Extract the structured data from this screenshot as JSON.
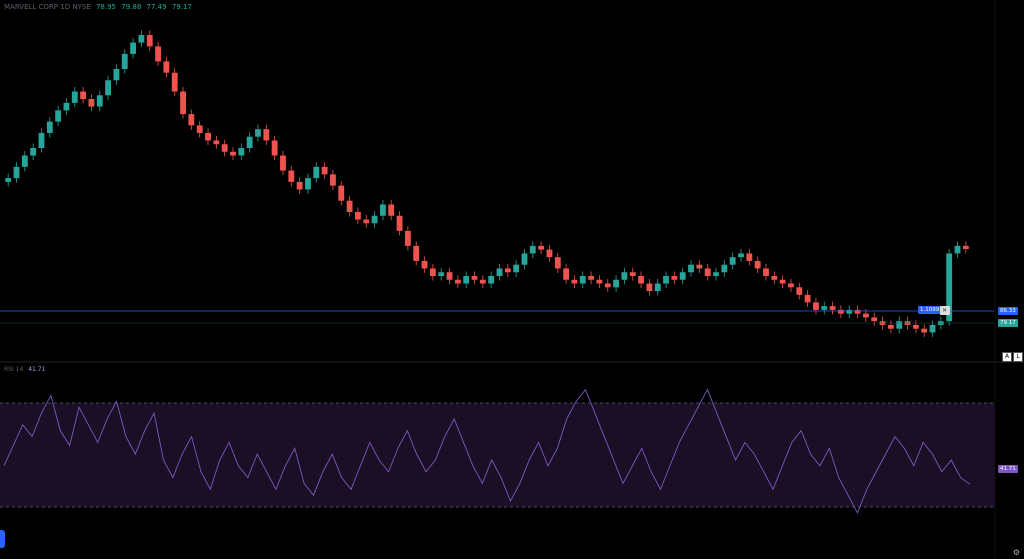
{
  "legend": {
    "symbol": "MARVELL CORP",
    "interval": "1D",
    "exchange": "NYSE",
    "open": "78.95",
    "high": "79.88",
    "low": "77.49",
    "close": "79.17"
  },
  "price_tags": {
    "hline": "86.33",
    "last": "79.17",
    "ratio": "1.1099"
  },
  "rsi": {
    "label": "RSI 14",
    "value": "41.71"
  },
  "buttons": {
    "auto": "A",
    "log": "L"
  },
  "colors": {
    "up": "#26a69a",
    "down": "#ef5350",
    "rsi": "#7e57c2",
    "hline": "#2962ff"
  },
  "chart_data": [
    {
      "type": "candlestick",
      "close_series": [
        98,
        101,
        104,
        106,
        110,
        113,
        116,
        118,
        121,
        119,
        117,
        120,
        124,
        127,
        131,
        134,
        136,
        133,
        129,
        126,
        121,
        115,
        112,
        110,
        108,
        107,
        105,
        104,
        106,
        109,
        111,
        108,
        104,
        100,
        97,
        95,
        98,
        101,
        99,
        96,
        92,
        89,
        87,
        86,
        88,
        91,
        88,
        84,
        80,
        76,
        74,
        72,
        73,
        71,
        70,
        72,
        71,
        70,
        72,
        74,
        73,
        75,
        78,
        80,
        79,
        77,
        74,
        71,
        70,
        72,
        71,
        70,
        69,
        71,
        73,
        72,
        70,
        68,
        70,
        72,
        71,
        73,
        75,
        74,
        72,
        73,
        75,
        77,
        78,
        76,
        74,
        72,
        71,
        70,
        69,
        67,
        65,
        63,
        64,
        63,
        62,
        63,
        62,
        61,
        60,
        59,
        58,
        60,
        59,
        58,
        57,
        59,
        60,
        78,
        80,
        79.17
      ],
      "ylabel": "",
      "grid": false
    },
    {
      "type": "line",
      "title": "RSI 14",
      "values": [
        48,
        55,
        62,
        58,
        66,
        72,
        60,
        55,
        68,
        62,
        56,
        64,
        70,
        58,
        52,
        60,
        66,
        50,
        44,
        52,
        58,
        46,
        40,
        50,
        56,
        48,
        44,
        52,
        46,
        40,
        48,
        54,
        42,
        38,
        46,
        52,
        44,
        40,
        48,
        56,
        50,
        46,
        54,
        60,
        52,
        46,
        50,
        58,
        64,
        56,
        48,
        42,
        50,
        44,
        36,
        42,
        50,
        56,
        48,
        54,
        64,
        70,
        74,
        66,
        58,
        50,
        42,
        48,
        54,
        46,
        40,
        48,
        56,
        62,
        68,
        74,
        66,
        58,
        50,
        56,
        52,
        46,
        40,
        48,
        56,
        60,
        52,
        48,
        54,
        44,
        38,
        32,
        40,
        46,
        52,
        58,
        54,
        48,
        56,
        52,
        46,
        50,
        44,
        41.71
      ],
      "ylim": [
        20,
        80
      ],
      "bands": [
        30,
        70
      ]
    }
  ]
}
